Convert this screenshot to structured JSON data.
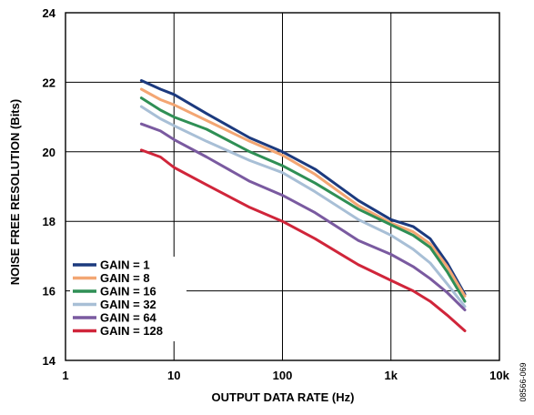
{
  "figure_id": "08566-069",
  "chart_data": {
    "type": "line",
    "xlabel": "OUTPUT DATA RATE (Hz)",
    "ylabel": "NOISE FREE RESOLUTION (Bits)",
    "xscale": "log",
    "xlim": [
      1,
      10000
    ],
    "ylim": [
      14,
      24
    ],
    "x_tick_labels": [
      "1",
      "10",
      "100",
      "1k",
      "10k"
    ],
    "x_tick_values": [
      1,
      10,
      100,
      1000,
      10000
    ],
    "y_tick_values": [
      14,
      16,
      18,
      20,
      22,
      24
    ],
    "y_tick_labels": [
      "14",
      "16",
      "18",
      "20",
      "22",
      "24"
    ],
    "grid": true,
    "legend_position": "bottom-left",
    "series": [
      {
        "name": "GAIN = 1",
        "color": "#1c3a7e",
        "x": [
          5,
          7.5,
          10,
          20,
          50,
          100,
          200,
          500,
          1000,
          1600,
          2300,
          3300,
          4800
        ],
        "y": [
          22.05,
          21.8,
          21.65,
          21.1,
          20.4,
          20.0,
          19.5,
          18.6,
          18.05,
          17.85,
          17.5,
          16.8,
          15.9
        ]
      },
      {
        "name": "GAIN = 8",
        "color": "#f3a673",
        "x": [
          5,
          7.5,
          10,
          20,
          50,
          100,
          200,
          500,
          1000,
          1600,
          2300,
          3300,
          4800
        ],
        "y": [
          21.8,
          21.5,
          21.35,
          20.9,
          20.3,
          19.9,
          19.35,
          18.45,
          17.95,
          17.7,
          17.35,
          16.7,
          15.85
        ]
      },
      {
        "name": "GAIN = 16",
        "color": "#2f8f55",
        "x": [
          5,
          7.5,
          10,
          20,
          50,
          100,
          200,
          500,
          1000,
          1600,
          2300,
          3300,
          4800
        ],
        "y": [
          21.55,
          21.2,
          21.0,
          20.65,
          20.0,
          19.6,
          19.1,
          18.35,
          17.9,
          17.6,
          17.25,
          16.55,
          15.7
        ]
      },
      {
        "name": "GAIN = 32",
        "color": "#a8bfd6",
        "x": [
          5,
          7.5,
          10,
          20,
          50,
          100,
          200,
          500,
          1000,
          1600,
          2300,
          3300,
          4800
        ],
        "y": [
          21.3,
          20.95,
          20.75,
          20.3,
          19.75,
          19.4,
          18.85,
          18.05,
          17.6,
          17.2,
          16.8,
          16.2,
          15.55
        ]
      },
      {
        "name": "GAIN = 64",
        "color": "#7a5aa0",
        "x": [
          5,
          7.5,
          10,
          20,
          50,
          100,
          200,
          500,
          1000,
          1600,
          2300,
          3300,
          4800
        ],
        "y": [
          20.8,
          20.6,
          20.35,
          19.85,
          19.15,
          18.75,
          18.25,
          17.45,
          17.05,
          16.7,
          16.35,
          15.95,
          15.45
        ]
      },
      {
        "name": "GAIN = 128",
        "color": "#d0253a",
        "x": [
          5,
          7.5,
          10,
          20,
          50,
          100,
          200,
          500,
          1000,
          1600,
          2300,
          3300,
          4800
        ],
        "y": [
          20.05,
          19.85,
          19.55,
          19.05,
          18.4,
          18.0,
          17.5,
          16.75,
          16.3,
          16.0,
          15.7,
          15.3,
          14.85
        ]
      }
    ]
  }
}
